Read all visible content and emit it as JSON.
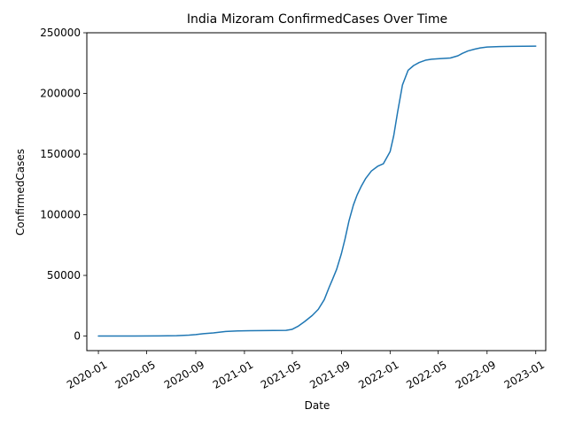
{
  "chart_data": {
    "type": "line",
    "title": "India Mizoram ConfirmedCases Over Time",
    "xlabel": "Date",
    "ylabel": "ConfirmedCases",
    "x_ticks": [
      "2020-01",
      "2020-05",
      "2020-09",
      "2021-01",
      "2021-05",
      "2021-09",
      "2022-01",
      "2022-05",
      "2022-09",
      "2023-01"
    ],
    "y_ticks": [
      "0",
      "50000",
      "100000",
      "150000",
      "200000",
      "250000"
    ],
    "ylim": [
      -12000,
      250000
    ],
    "xlim": [
      "2019-12-03",
      "2023-01-26"
    ],
    "grid": false,
    "series": [
      {
        "color": "#1f77b4",
        "x": [
          "2020-01-01",
          "2020-04-01",
          "2020-06-01",
          "2020-07-15",
          "2020-08-15",
          "2020-09-01",
          "2020-09-20",
          "2020-10-15",
          "2020-11-15",
          "2020-12-15",
          "2021-01-15",
          "2021-02-15",
          "2021-03-15",
          "2021-04-15",
          "2021-04-30",
          "2021-05-15",
          "2021-06-01",
          "2021-06-20",
          "2021-07-05",
          "2021-07-20",
          "2021-08-01",
          "2021-08-10",
          "2021-08-20",
          "2021-09-01",
          "2021-09-10",
          "2021-09-20",
          "2021-10-01",
          "2021-10-10",
          "2021-10-20",
          "2021-11-01",
          "2021-11-15",
          "2021-12-01",
          "2021-12-15",
          "2022-01-01",
          "2022-01-10",
          "2022-01-20",
          "2022-02-01",
          "2022-02-15",
          "2022-03-01",
          "2022-03-15",
          "2022-04-01",
          "2022-04-15",
          "2022-05-01",
          "2022-06-01",
          "2022-06-20",
          "2022-07-01",
          "2022-07-15",
          "2022-08-01",
          "2022-08-15",
          "2022-09-01",
          "2022-10-01",
          "2022-11-01",
          "2022-12-01",
          "2023-01-01"
        ],
        "y": [
          0,
          0,
          100,
          300,
          800,
          1200,
          2000,
          2600,
          3800,
          4200,
          4400,
          4500,
          4600,
          4700,
          5500,
          8000,
          12000,
          17000,
          22000,
          30000,
          40000,
          47000,
          55000,
          68000,
          80000,
          95000,
          108000,
          116000,
          123000,
          130000,
          136000,
          140000,
          142000,
          152000,
          165000,
          185000,
          207000,
          219000,
          223000,
          225500,
          227500,
          228200,
          228600,
          229200,
          231000,
          233000,
          235000,
          236500,
          237500,
          238200,
          238600,
          238800,
          238900,
          239000
        ]
      }
    ]
  }
}
